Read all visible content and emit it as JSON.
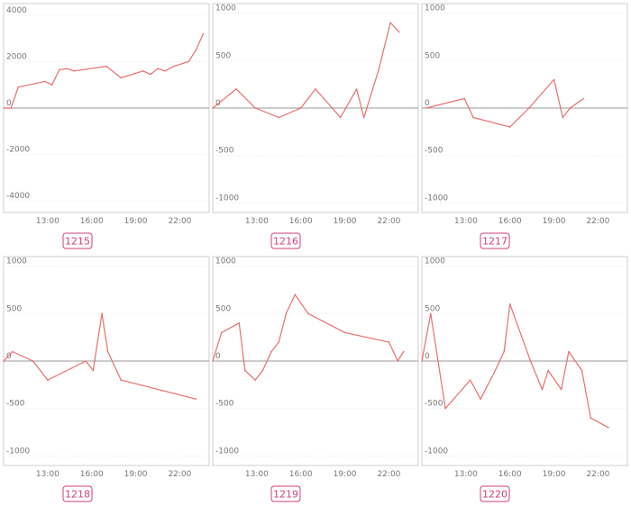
{
  "chart_data": [
    {
      "type": "line",
      "badge": "1215",
      "ylim": [
        -4500,
        4500
      ],
      "yticks": [
        4000,
        2000,
        0,
        -2000,
        -4000
      ],
      "xlim": [
        10,
        24
      ],
      "xticks": [
        13,
        16,
        19,
        22
      ],
      "xtick_labels": [
        "13:00",
        "16:00",
        "19:00",
        "22:00"
      ],
      "x": [
        10.0,
        10.5,
        11.0,
        12.8,
        13.3,
        13.8,
        14.3,
        14.8,
        17.0,
        18.0,
        19.5,
        20.0,
        20.5,
        21.0,
        21.6,
        22.6,
        23.1,
        23.6
      ],
      "y": [
        0,
        0,
        900,
        1150,
        1000,
        1650,
        1700,
        1600,
        1800,
        1300,
        1600,
        1450,
        1700,
        1600,
        1800,
        2000,
        2500,
        3200
      ],
      "grid": true,
      "line_color": "#e86f6f"
    },
    {
      "type": "line",
      "badge": "1216",
      "ylim": [
        -1100,
        1100
      ],
      "yticks": [
        1000,
        500,
        0,
        -500,
        -1000
      ],
      "xlim": [
        10,
        24
      ],
      "xticks": [
        13,
        16,
        19,
        22
      ],
      "xtick_labels": [
        "13:00",
        "16:00",
        "19:00",
        "22:00"
      ],
      "x": [
        10.0,
        11.6,
        12.9,
        14.5,
        16.0,
        17.0,
        18.7,
        19.8,
        20.3,
        21.3,
        22.1,
        22.7
      ],
      "y": [
        0,
        200,
        0,
        -100,
        0,
        200,
        -100,
        200,
        -100,
        400,
        900,
        800
      ],
      "grid": true,
      "line_color": "#e86f6f"
    },
    {
      "type": "line",
      "badge": "1217",
      "ylim": [
        -1100,
        1100
      ],
      "yticks": [
        1000,
        500,
        0,
        -500,
        -1000
      ],
      "xlim": [
        10,
        24
      ],
      "xticks": [
        13,
        16,
        19,
        22
      ],
      "xtick_labels": [
        "13:00",
        "16:00",
        "19:00",
        "22:00"
      ],
      "x": [
        10.3,
        12.9,
        13.5,
        16.0,
        17.3,
        19.0,
        19.6,
        20.1,
        21.0
      ],
      "y": [
        0,
        100,
        -100,
        -200,
        0,
        300,
        -100,
        0,
        100
      ],
      "grid": true,
      "line_color": "#e86f6f"
    },
    {
      "type": "line",
      "badge": "1218",
      "ylim": [
        -1100,
        1100
      ],
      "yticks": [
        1000,
        500,
        0,
        -500,
        -1000
      ],
      "xlim": [
        10,
        24
      ],
      "xticks": [
        13,
        16,
        19,
        22
      ],
      "xtick_labels": [
        "13:00",
        "16:00",
        "19:00",
        "22:00"
      ],
      "x": [
        10.0,
        10.6,
        12.0,
        13.0,
        15.6,
        16.1,
        16.7,
        17.1,
        18.0,
        23.1
      ],
      "y": [
        0,
        100,
        0,
        -200,
        0,
        -100,
        500,
        100,
        -200,
        -400
      ],
      "grid": true,
      "line_color": "#e86f6f"
    },
    {
      "type": "line",
      "badge": "1219",
      "ylim": [
        -1100,
        1100
      ],
      "yticks": [
        1000,
        500,
        0,
        -500,
        -1000
      ],
      "xlim": [
        10,
        24
      ],
      "xticks": [
        13,
        16,
        19,
        22
      ],
      "xtick_labels": [
        "13:00",
        "16:00",
        "19:00",
        "22:00"
      ],
      "x": [
        10.0,
        10.6,
        11.8,
        12.2,
        12.9,
        13.4,
        14.0,
        14.5,
        15.0,
        15.6,
        16.5,
        19.0,
        22.0,
        22.6,
        23.0
      ],
      "y": [
        0,
        300,
        400,
        -100,
        -200,
        -100,
        100,
        200,
        500,
        700,
        500,
        300,
        200,
        0,
        100
      ],
      "grid": true,
      "line_color": "#e86f6f"
    },
    {
      "type": "line",
      "badge": "1220",
      "ylim": [
        -1100,
        1100
      ],
      "yticks": [
        1000,
        500,
        0,
        -500,
        -1000
      ],
      "xlim": [
        10,
        24
      ],
      "xticks": [
        13,
        16,
        19,
        22
      ],
      "xtick_labels": [
        "13:00",
        "16:00",
        "19:00",
        "22:00"
      ],
      "x": [
        10.0,
        10.6,
        11.6,
        13.3,
        14.0,
        15.0,
        15.6,
        16.0,
        17.4,
        18.2,
        18.6,
        19.5,
        20.0,
        20.9,
        21.5,
        22.7
      ],
      "y": [
        0,
        500,
        -500,
        -200,
        -400,
        -100,
        100,
        600,
        0,
        -300,
        -100,
        -300,
        100,
        -100,
        -600,
        -700
      ],
      "grid": true,
      "line_color": "#e86f6f"
    }
  ]
}
